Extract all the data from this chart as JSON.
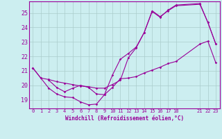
{
  "xlabel": "Windchill (Refroidissement éolien,°C)",
  "bg_color": "#cceef0",
  "grid_color": "#aacccc",
  "line_color": "#990099",
  "xlim": [
    -0.5,
    23.5
  ],
  "ylim": [
    18.4,
    25.8
  ],
  "yticks": [
    19,
    20,
    21,
    22,
    23,
    24,
    25
  ],
  "xticks": [
    0,
    1,
    2,
    3,
    4,
    5,
    6,
    7,
    8,
    9,
    10,
    11,
    12,
    13,
    14,
    15,
    16,
    17,
    18,
    21,
    22,
    23
  ],
  "series": [
    {
      "x": [
        0,
        1,
        2,
        3,
        4,
        5,
        6,
        7,
        8,
        9,
        10,
        11,
        12,
        13,
        14,
        15,
        16,
        17,
        18,
        21,
        22,
        23
      ],
      "y": [
        21.2,
        20.5,
        19.8,
        19.4,
        19.2,
        19.15,
        18.85,
        18.65,
        18.7,
        19.35,
        19.85,
        20.45,
        20.5,
        20.6,
        20.85,
        21.05,
        21.25,
        21.5,
        21.65,
        22.85,
        23.05,
        21.55
      ]
    },
    {
      "x": [
        0,
        1,
        2,
        3,
        4,
        5,
        6,
        7,
        8,
        9,
        10,
        11,
        12,
        13,
        14,
        15,
        16,
        17,
        18,
        21,
        22,
        23
      ],
      "y": [
        21.2,
        20.5,
        20.4,
        20.25,
        20.15,
        20.05,
        19.95,
        19.9,
        19.8,
        19.8,
        20.05,
        20.35,
        21.9,
        22.6,
        23.65,
        25.15,
        24.75,
        25.15,
        25.5,
        25.6,
        24.35,
        22.85
      ]
    },
    {
      "x": [
        2,
        3,
        4,
        5,
        6,
        7,
        8,
        9,
        10,
        11,
        12,
        13,
        14,
        15,
        16,
        17,
        18,
        21,
        22,
        23
      ],
      "y": [
        20.35,
        19.85,
        19.55,
        19.8,
        20.0,
        19.85,
        19.4,
        19.35,
        20.7,
        21.8,
        22.2,
        22.65,
        23.65,
        25.1,
        24.7,
        25.2,
        25.55,
        25.65,
        24.35,
        22.85
      ]
    }
  ]
}
